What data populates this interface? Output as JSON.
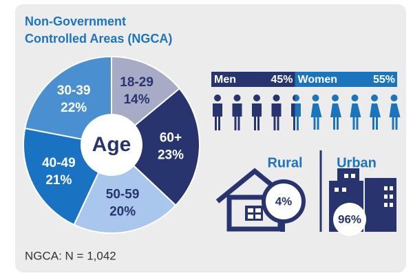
{
  "title_lines": [
    "Non-Government",
    "Controlled Areas (NGCA)"
  ],
  "chart_data": {
    "type": "pie",
    "center_label": "Age",
    "categories": [
      "18-29",
      "60+",
      "50-59",
      "40-49",
      "30-39"
    ],
    "values": [
      14,
      23,
      20,
      21,
      22
    ],
    "value_labels": [
      "14%",
      "23%",
      "20%",
      "21%",
      "22%"
    ],
    "colors": [
      "#a7abc6",
      "#27346e",
      "#a9c6ec",
      "#1a72c2",
      "#4a8fd0"
    ],
    "label_colors": [
      "#27346e",
      "#ffffff",
      "#27346e",
      "#ffffff",
      "#ffffff"
    ]
  },
  "gender": [
    {
      "name": "Men",
      "value": 45,
      "value_label": "45%",
      "color": "#27346e"
    },
    {
      "name": "Women",
      "value": 55,
      "value_label": "55%",
      "color": "#1c75bc"
    }
  ],
  "location": [
    {
      "name": "Rural",
      "value": 4,
      "value_label": "4%"
    },
    {
      "name": "Urban",
      "value": 96,
      "value_label": "96%"
    }
  ],
  "footnote": "NGCA: N = 1,042"
}
